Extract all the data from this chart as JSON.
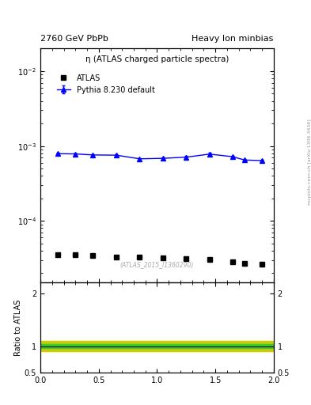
{
  "title_left": "2760 GeV PbPb",
  "title_right": "Heavy Ion minbias",
  "panel_title": "η (ATLAS charged particle spectra)",
  "watermark": "(ATLAS_2015_I1360290)",
  "right_label": "mcplots.cern.ch [arXiv:1306.3436]",
  "atlas_x": [
    0.15,
    0.3,
    0.45,
    0.65,
    0.85,
    1.05,
    1.25,
    1.45,
    1.65,
    1.75,
    1.9
  ],
  "atlas_y": [
    3.5e-05,
    3.5e-05,
    3.45e-05,
    3.3e-05,
    3.25e-05,
    3.2e-05,
    3.1e-05,
    3.05e-05,
    2.85e-05,
    2.7e-05,
    2.65e-05
  ],
  "pythia_x": [
    0.15,
    0.3,
    0.45,
    0.65,
    0.85,
    1.05,
    1.25,
    1.45,
    1.65,
    1.75,
    1.9
  ],
  "pythia_y": [
    0.00079,
    0.000785,
    0.00076,
    0.000755,
    0.000675,
    0.000685,
    0.00071,
    0.00078,
    0.00072,
    0.00065,
    0.00064
  ],
  "pythia_yerr_lo": [
    2.5e-05,
    2e-05,
    2e-05,
    2e-05,
    2e-05,
    2.5e-05,
    2.5e-05,
    3e-05,
    2.5e-05,
    2.5e-05,
    2e-05
  ],
  "pythia_yerr_hi": [
    2.5e-05,
    2e-05,
    2e-05,
    2e-05,
    2e-05,
    2.5e-05,
    2.5e-05,
    3e-05,
    2.5e-05,
    2.5e-05,
    2e-05
  ],
  "ratio_green_band": 0.04,
  "ratio_yellow_band": 0.1,
  "xlim": [
    0,
    2
  ],
  "ylim_main_lo": 1.5e-05,
  "ylim_main_hi": 0.02,
  "ylim_ratio_lo": 0.5,
  "ylim_ratio_hi": 2.2,
  "atlas_color": "#000000",
  "pythia_color": "#0000ff",
  "green_band_color": "#33cc33",
  "yellow_band_color": "#cccc00",
  "ylabel_ratio": "Ratio to ATLAS",
  "legend_atlas": "ATLAS",
  "legend_pythia": "Pythia 8.230 default"
}
